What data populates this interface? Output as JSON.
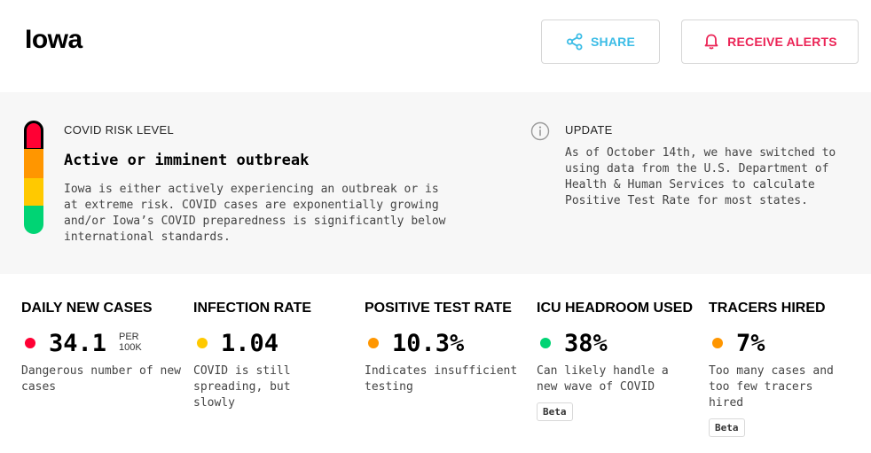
{
  "header": {
    "title": "Iowa",
    "share_label": "SHARE",
    "alerts_label": "RECEIVE ALERTS",
    "share_color": "#3bbce6",
    "alerts_color": "#eb2456"
  },
  "risk": {
    "label": "COVID RISK LEVEL",
    "level": "Active or imminent outbreak",
    "description": "Iowa is either actively experiencing an outbreak or is at extreme risk. COVID cases are exponentially growing and/or Iowa’s COVID preparedness is significantly below international standards.",
    "colors": {
      "red": "#ff0034",
      "orange": "#ff9600",
      "yellow": "#ffc900",
      "green": "#00d474"
    }
  },
  "update": {
    "label": "UPDATE",
    "text": "As of October 14th, we have switched to using data from the U.S. Department of Health & Human Services to calculate Positive Test Rate for most states."
  },
  "metrics": [
    {
      "title": "DAILY NEW CASES",
      "value": "34.1",
      "unit_line1": "PER",
      "unit_line2": "100K",
      "status_color": "#ff0034",
      "description": "Dangerous number of new cases",
      "beta": ""
    },
    {
      "title": "INFECTION RATE",
      "value": "1.04",
      "status_color": "#ffc900",
      "description": "COVID is still spreading, but slowly",
      "beta": ""
    },
    {
      "title": "POSITIVE TEST RATE",
      "value": "10.3%",
      "status_color": "#ff9600",
      "description": "Indicates insufficient testing",
      "beta": ""
    },
    {
      "title": "ICU HEADROOM USED",
      "value": "38%",
      "status_color": "#00d474",
      "description": "Can likely handle a new wave of COVID",
      "beta": "Beta"
    },
    {
      "title": "TRACERS HIRED",
      "value": "7%",
      "status_color": "#ff9600",
      "description": "Too many cases and too few tracers hired",
      "beta": "Beta"
    }
  ]
}
